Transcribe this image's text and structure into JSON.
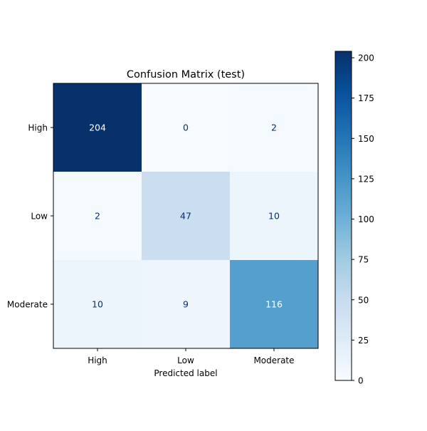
{
  "chart_data": {
    "type": "heatmap",
    "title": "Confusion Matrix (test)",
    "xlabel": "Predicted label",
    "ylabel": "",
    "x_categories": [
      "High",
      "Low",
      "Moderate"
    ],
    "y_categories": [
      "High",
      "Low",
      "Moderate"
    ],
    "values": [
      [
        204,
        0,
        2
      ],
      [
        2,
        47,
        10
      ],
      [
        10,
        9,
        116
      ]
    ],
    "colormap": "Blues",
    "colorbar": {
      "ticks": [
        0,
        25,
        50,
        75,
        100,
        125,
        150,
        175,
        200
      ],
      "range": [
        0,
        204
      ]
    },
    "colors": {
      "text_dark": "#08306b",
      "text_light": "#ffffff"
    },
    "grid": false
  }
}
